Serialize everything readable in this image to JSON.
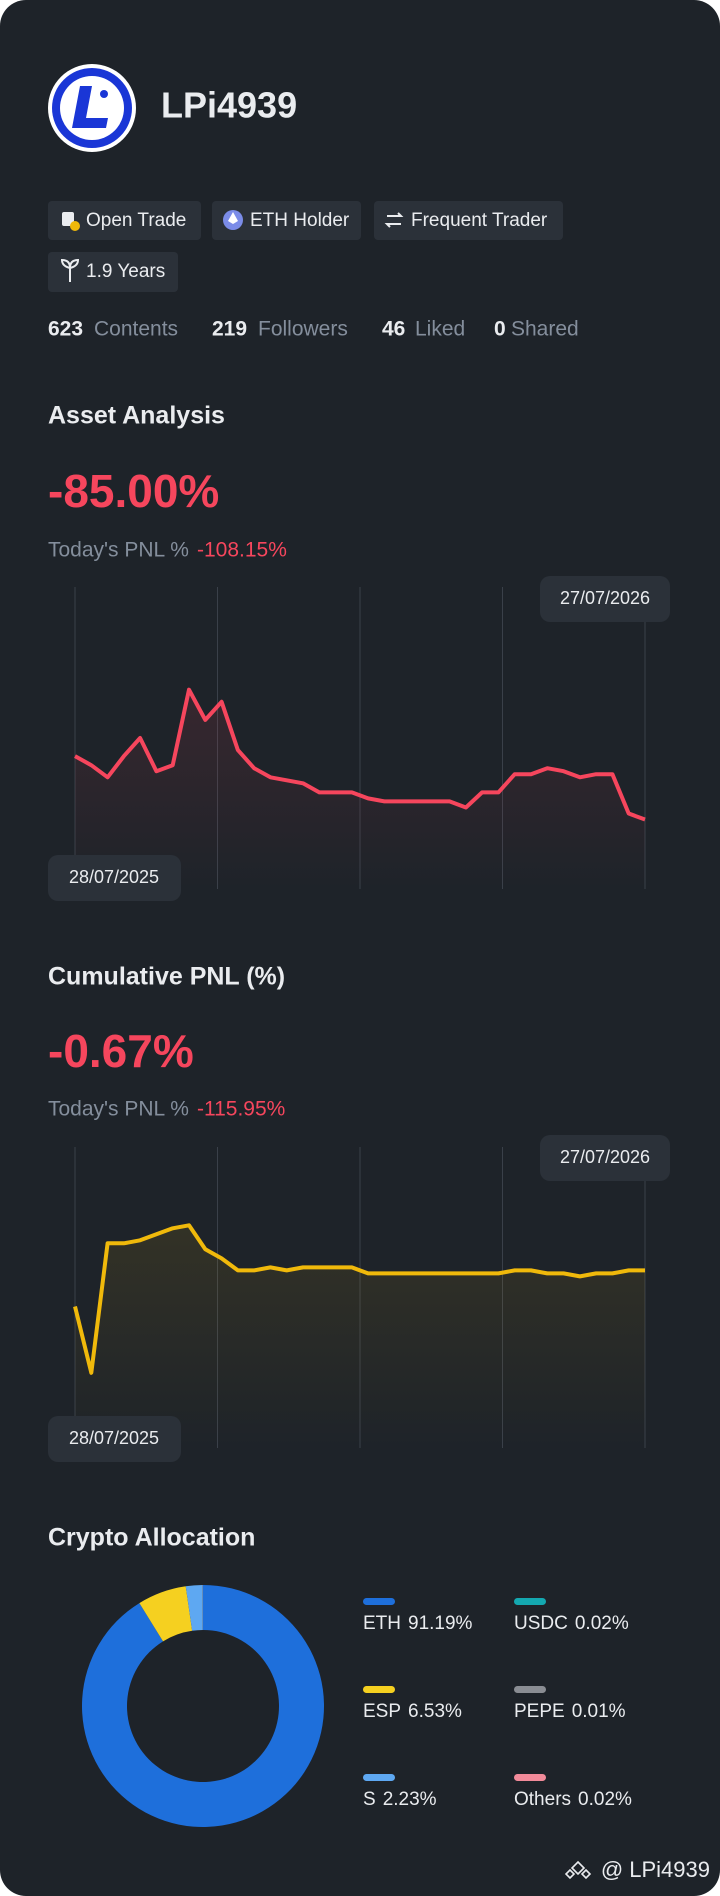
{
  "profile": {
    "name": "LPi4939",
    "badges": [
      "Open Trade",
      "ETH Holder",
      "Frequent Trader",
      "1.9 Years"
    ],
    "stats": [
      {
        "value": 623,
        "label": "Contents"
      },
      {
        "value": 219,
        "label": "Followers"
      },
      {
        "value": 46,
        "label": "Liked"
      },
      {
        "value": 0,
        "label": "Shared"
      }
    ]
  },
  "chart_data": [
    {
      "type": "line",
      "title": "Asset Analysis",
      "headline": "-85.00%",
      "pnl_label": "Today's PNL %",
      "pnl_value": "-108.15%",
      "start_label": "28/07/2025",
      "end_label": "27/07/2026",
      "color": "#f6465d",
      "ylim": [
        0,
        100
      ],
      "values": [
        44,
        41,
        37,
        44,
        50,
        39,
        41,
        66,
        56,
        62,
        46,
        40,
        37,
        36,
        35,
        32,
        32,
        32,
        30,
        29,
        29,
        29,
        29,
        29,
        27,
        32,
        32,
        38,
        38,
        40,
        39,
        37,
        38,
        38,
        25,
        23
      ]
    },
    {
      "type": "line",
      "title": "Cumulative PNL (%)",
      "headline": "-0.67%",
      "pnl_label": "Today's PNL %",
      "pnl_value": "-115.95%",
      "start_label": "28/07/2025",
      "end_label": "27/07/2026",
      "color": "#f0b90b",
      "ylim": [
        0,
        100
      ],
      "values": [
        47,
        25,
        68,
        68,
        69,
        71,
        73,
        74,
        66,
        63,
        59,
        59,
        60,
        59,
        60,
        60,
        60,
        60,
        58,
        58,
        58,
        58,
        58,
        58,
        58,
        58,
        58,
        59,
        59,
        58,
        58,
        57,
        58,
        58,
        59,
        59
      ]
    },
    {
      "type": "pie",
      "title": "Crypto Allocation",
      "categories": [
        "ETH",
        "ESP",
        "S",
        "USDC",
        "PEPE",
        "Others"
      ],
      "values": [
        91.19,
        6.53,
        2.23,
        0.02,
        0.01,
        0.02
      ],
      "value_labels": [
        "91.19%",
        "6.53%",
        "2.23%",
        "0.02%",
        "0.01%",
        "0.02%"
      ],
      "colors": [
        "#1e6fdb",
        "#f5d020",
        "#5ea8f2",
        "#14a8b0",
        "#8a8d93",
        "#f28b9a"
      ]
    }
  ],
  "watermark": "@ LPi4939"
}
